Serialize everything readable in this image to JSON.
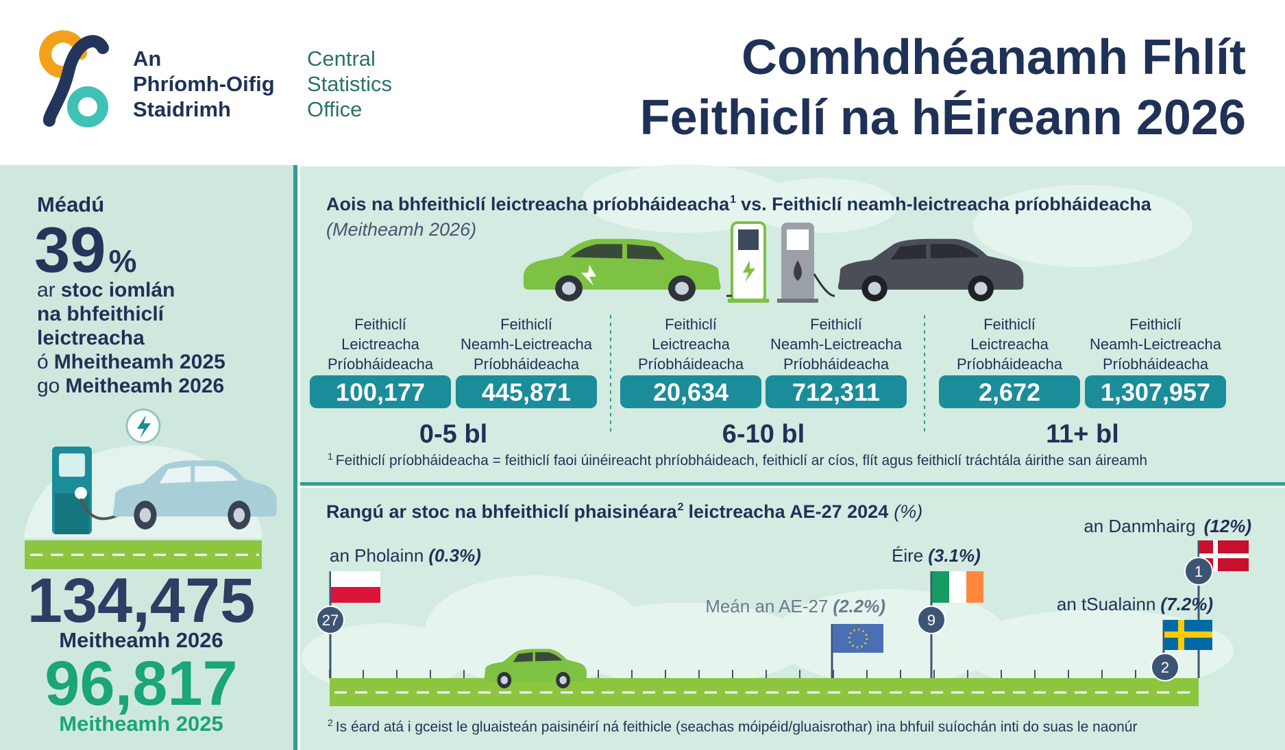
{
  "header": {
    "logo_irish": [
      "An",
      "Phríomh-Oifig",
      "Staidrimh"
    ],
    "logo_english": [
      "Central",
      "Statistics",
      "Office"
    ],
    "title": [
      "Comhdhéanamh Fhlít",
      "Feithiclí na hÉireann 2026"
    ]
  },
  "summary": {
    "label": "Méadú",
    "percent": "39",
    "percent_sign": "%",
    "lines": [
      {
        "normal": "ar",
        "bold": "stoc iomlán"
      },
      {
        "bold": "na bhfeithiclí"
      },
      {
        "bold": "leictreacha"
      },
      {
        "normal": "ó",
        "bold": "Mheitheamh 2025"
      },
      {
        "normal": "go",
        "bold": "Meitheamh 2026"
      }
    ],
    "stock_2026": "134,475",
    "date_2026": "Meitheamh 2026",
    "stock_2025": "96,817",
    "date_2025": "Meitheamh 2025"
  },
  "age_panel": {
    "title": "Aois na bhfeithiclí leictreacha príobháideacha",
    "title_note": "1",
    "title_rest": "vs. Feithiclí neamh-leictreacha príobháideacha",
    "subtitle": "(Meitheamh 2026)",
    "column_labels": [
      [
        "Feithiclí",
        "Leictreacha",
        "Príobháideacha"
      ],
      [
        "Feithiclí",
        "Neamh-Leictreacha",
        "Príobháideacha"
      ]
    ],
    "groups": [
      {
        "label": "0-5 bl",
        "values": [
          "100,177",
          "445,871"
        ]
      },
      {
        "label": "6-10 bl",
        "values": [
          "20,634",
          "712,311"
        ]
      },
      {
        "label": "11+ bl",
        "values": [
          "2,672",
          "1,307,957"
        ]
      }
    ],
    "footnote_mark": "1",
    "footnote": "Feithiclí príobháideacha = feithiclí faoi úinéireacht phríobháideach, feithiclí ar cíos, flít agus feithiclí tráchtála áirithe san áireamh"
  },
  "ranking_panel": {
    "title": "Rangú ar stoc na bhfeithiclí phaisinéara",
    "title_note": "2",
    "title_rest": "leictreacha AE-27 2024",
    "unit": "(%)",
    "countries": [
      {
        "name": "an Pholainn",
        "share": "(0.3%)",
        "rank": "27"
      },
      {
        "name": "Meán an AE-27",
        "share": "(2.2%)"
      },
      {
        "name": "Éire",
        "share": "(3.1%)",
        "rank": "9"
      },
      {
        "name": "an tSualainn",
        "share": "(7.2%)",
        "rank": "2"
      },
      {
        "name": "an Danmhairg",
        "share": "(12%)",
        "rank": "1"
      }
    ],
    "footnote_mark": "2",
    "footnote": "Is éard atá i gceist le gluaisteán paisinéirí ná feithicle (seachas móipéid/gluaisrothar) ina bhfuil suíochán inti do suas le naonúr"
  }
}
